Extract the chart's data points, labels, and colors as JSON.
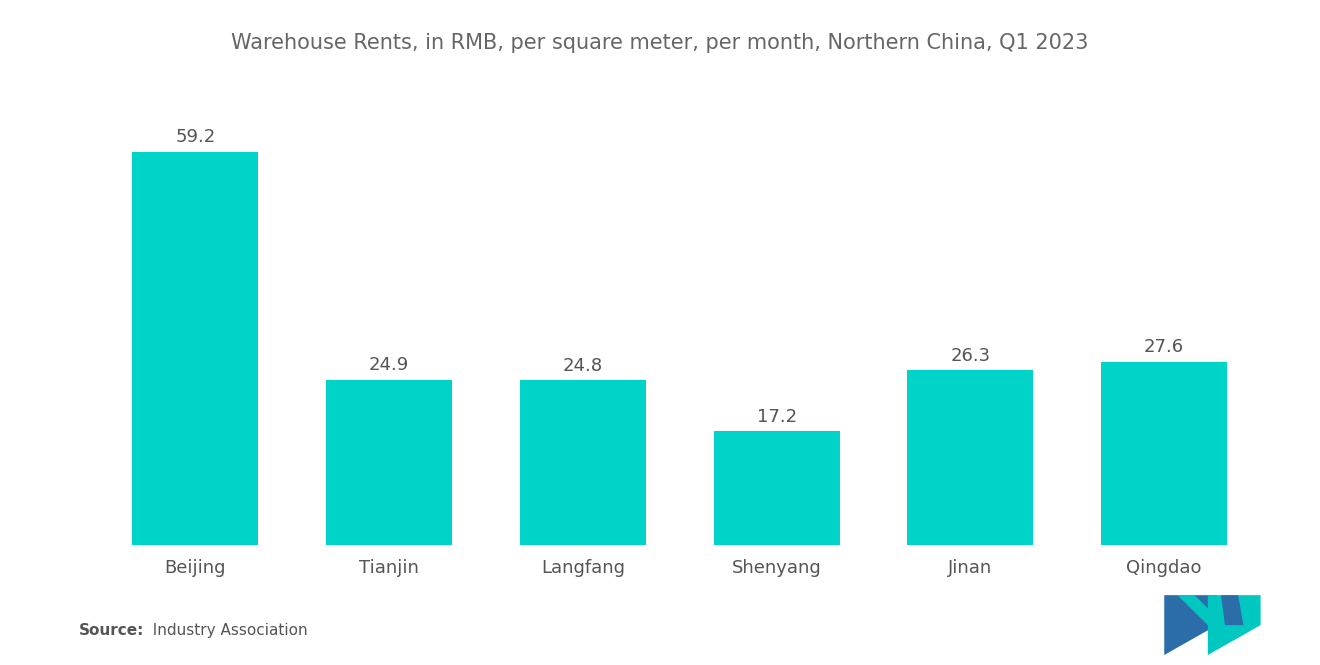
{
  "title": "Warehouse Rents, in RMB, per square meter, per month, Northern China, Q1 2023",
  "categories": [
    "Beijing",
    "Tianjin",
    "Langfang",
    "Shenyang",
    "Jinan",
    "Qingdao"
  ],
  "values": [
    59.2,
    24.9,
    24.8,
    17.2,
    26.3,
    27.6
  ],
  "bar_color": "#00D4C8",
  "background_color": "#FFFFFF",
  "title_fontsize": 15,
  "label_fontsize": 13,
  "value_fontsize": 13,
  "source_bold": "Source:",
  "source_normal": "  Industry Association",
  "ylim": [
    0,
    70
  ],
  "bar_width": 0.65,
  "logo_blue": "#2B6DA8",
  "logo_teal": "#00C8C0"
}
